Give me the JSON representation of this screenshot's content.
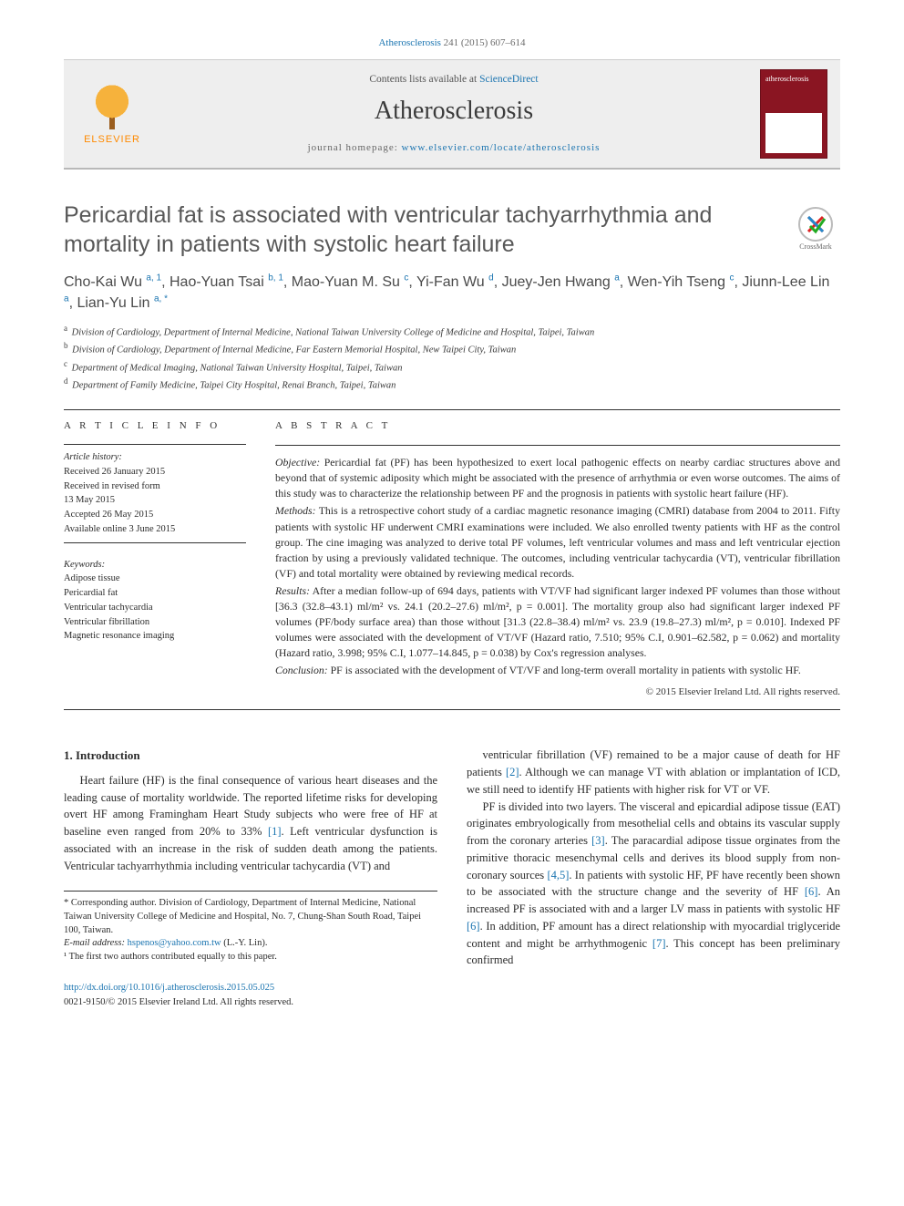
{
  "citation": {
    "journal_link": "Atherosclerosis",
    "vol_pages": " 241 (2015) 607–614"
  },
  "banner": {
    "contents_prefix": "Contents lists available at ",
    "contents_link": "ScienceDirect",
    "journal": "Atherosclerosis",
    "homepage_label": "journal homepage: ",
    "homepage_url": "www.elsevier.com/locate/atherosclerosis",
    "publisher_logo_text": "ELSEVIER",
    "cover_text": "atherosclerosis"
  },
  "crossmark_label": "CrossMark",
  "title": "Pericardial fat is associated with ventricular tachyarrhythmia and mortality in patients with systolic heart failure",
  "authors_html": "Cho-Kai Wu <sup>a, 1</sup>, Hao-Yuan Tsai <sup>b, 1</sup>, Mao-Yuan M. Su <sup>c</sup>, Yi-Fan Wu <sup>d</sup>, Juey-Jen Hwang <sup>a</sup>, Wen-Yih Tseng <sup>c</sup>, Jiunn-Lee Lin <sup>a</sup>, Lian-Yu Lin <sup>a, *</sup>",
  "affiliations": [
    {
      "sup": "a",
      "text": "Division of Cardiology, Department of Internal Medicine, National Taiwan University College of Medicine and Hospital, Taipei, Taiwan"
    },
    {
      "sup": "b",
      "text": "Division of Cardiology, Department of Internal Medicine, Far Eastern Memorial Hospital, New Taipei City, Taiwan"
    },
    {
      "sup": "c",
      "text": "Department of Medical Imaging, National Taiwan University Hospital, Taipei, Taiwan"
    },
    {
      "sup": "d",
      "text": "Department of Family Medicine, Taipei City Hospital, Renai Branch, Taipei, Taiwan"
    }
  ],
  "info": {
    "head": "A R T I C L E   I N F O",
    "history_head": "Article history:",
    "history": [
      "Received 26 January 2015",
      "Received in revised form",
      "13 May 2015",
      "Accepted 26 May 2015",
      "Available online 3 June 2015"
    ],
    "kw_head": "Keywords:",
    "keywords": [
      "Adipose tissue",
      "Pericardial fat",
      "Ventricular tachycardia",
      "Ventricular fibrillation",
      "Magnetic resonance imaging"
    ]
  },
  "abstract": {
    "head": "A B S T R A C T",
    "objective": "Pericardial fat (PF) has been hypothesized to exert local pathogenic effects on nearby cardiac structures above and beyond that of systemic adiposity which might be associated with the presence of arrhythmia or even worse outcomes. The aims of this study was to characterize the relationship between PF and the prognosis in patients with systolic heart failure (HF).",
    "methods": "This is a retrospective cohort study of a cardiac magnetic resonance imaging (CMRI) database from 2004 to 2011. Fifty patients with systolic HF underwent CMRI examinations were included. We also enrolled twenty patients with HF as the control group. The cine imaging was analyzed to derive total PF volumes, left ventricular volumes and mass and left ventricular ejection fraction by using a previously validated technique. The outcomes, including ventricular tachycardia (VT), ventricular fibrillation (VF) and total mortality were obtained by reviewing medical records.",
    "results": "After a median follow-up of 694 days, patients with VT/VF had significant larger indexed PF volumes than those without [36.3 (32.8–43.1) ml/m² vs. 24.1 (20.2–27.6) ml/m², p = 0.001]. The mortality group also had significant larger indexed PF volumes (PF/body surface area) than those without [31.3 (22.8–38.4) ml/m² vs. 23.9 (19.8–27.3) ml/m², p = 0.010]. Indexed PF volumes were associated with the development of VT/VF (Hazard ratio, 7.510; 95% C.I, 0.901–62.582, p = 0.062) and mortality (Hazard ratio, 3.998; 95% C.I, 1.077–14.845, p = 0.038) by Cox's regression analyses.",
    "conclusion": "PF is associated with the development of VT/VF and long-term overall mortality in patients with systolic HF.",
    "copyright": "© 2015 Elsevier Ireland Ltd. All rights reserved."
  },
  "body": {
    "section_heading": "1. Introduction",
    "col1_p1": "Heart failure (HF) is the final consequence of various heart diseases and the leading cause of mortality worldwide. The reported lifetime risks for developing overt HF among Framingham Heart Study subjects who were free of HF at baseline even ranged from 20% to 33% [1]. Left ventricular dysfunction is associated with an increase in the risk of sudden death among the patients. Ventricular tachyarrhythmia including ventricular tachycardia (VT) and",
    "col2_p1": "ventricular fibrillation (VF) remained to be a major cause of death for HF patients [2]. Although we can manage VT with ablation or implantation of ICD, we still need to identify HF patients with higher risk for VT or VF.",
    "col2_p2": "PF is divided into two layers. The visceral and epicardial adipose tissue (EAT) originates embryologically from mesothelial cells and obtains its vascular supply from the coronary arteries [3]. The paracardial adipose tissue orginates from the primitive thoracic mesenchymal cells and derives its blood supply from non-coronary sources [4,5]. In patients with systolic HF, PF have recently been shown to be associated with the structure change and the severity of HF [6]. An increased PF is associated with and a larger LV mass in patients with systolic HF [6]. In addition, PF amount has a direct relationship with myocardial triglyceride content and might be arrhythmogenic [7]. This concept has been preliminary confirmed"
  },
  "footnotes": {
    "corr": "* Corresponding author. Division of Cardiology, Department of Internal Medicine, National Taiwan University College of Medicine and Hospital, No. 7, Chung-Shan South Road, Taipei 100, Taiwan.",
    "email_label": "E-mail address: ",
    "email": "hspenos@yahoo.com.tw",
    "email_tail": " (L.-Y. Lin).",
    "note1": "¹ The first two authors contributed equally to this paper."
  },
  "doi": {
    "url": "http://dx.doi.org/10.1016/j.atherosclerosis.2015.05.025",
    "issn_line": "0021-9150/© 2015 Elsevier Ireland Ltd. All rights reserved."
  },
  "refs": {
    "r1": "[1]",
    "r2": "[2]",
    "r3": "[3]",
    "r45": "[4,5]",
    "r6": "[6]",
    "r7": "[7]"
  },
  "colors": {
    "link": "#1a74b0",
    "banner_bg": "#eeeeee",
    "cover_bg": "#8a1522",
    "elsevier_orange": "#ff8a00"
  }
}
